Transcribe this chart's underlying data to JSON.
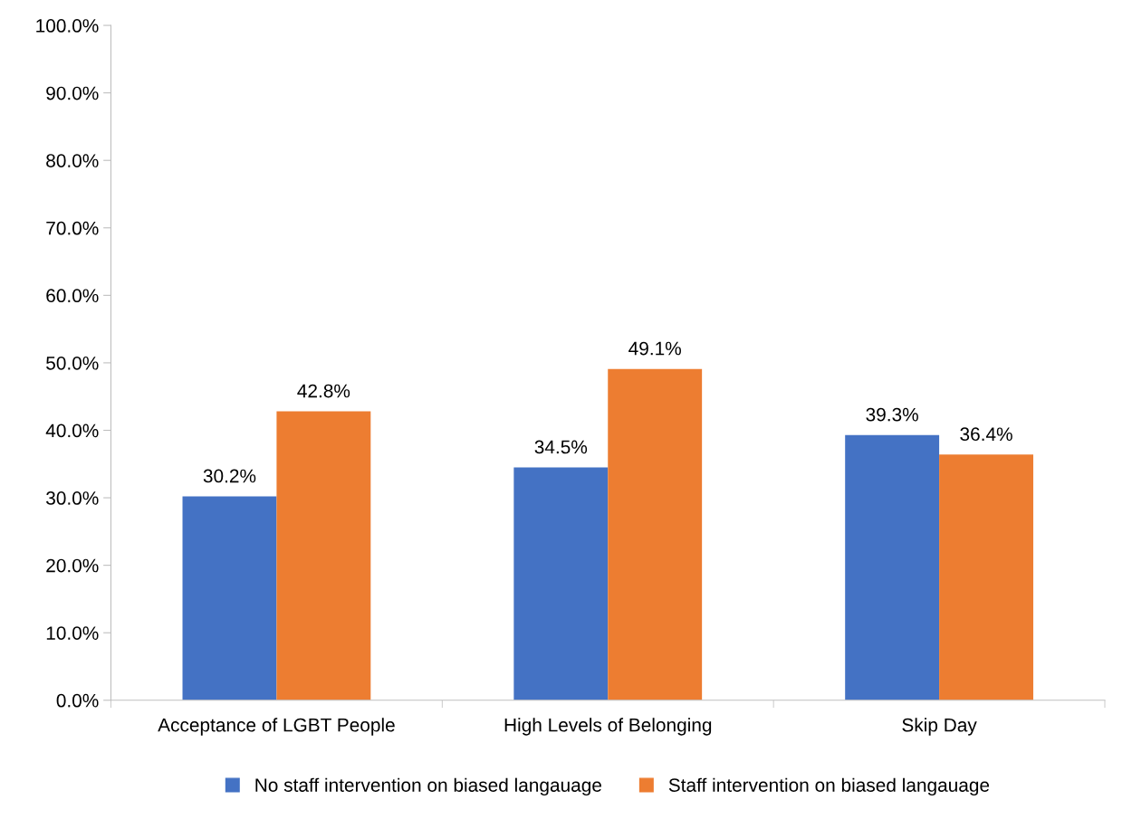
{
  "chart_data": {
    "type": "bar",
    "categories": [
      "Acceptance of LGBT People",
      "High Levels of Belonging",
      "Skip Day"
    ],
    "series": [
      {
        "name": "No staff intervention on biased langauage",
        "color": "#4472c4",
        "values": [
          30.2,
          34.5,
          39.3
        ],
        "value_labels": [
          "30.2%",
          "34.5%",
          "39.3%"
        ]
      },
      {
        "name": "Staff intervention on biased langauage",
        "color": "#ed7d31",
        "values": [
          42.8,
          49.1,
          36.4
        ],
        "value_labels": [
          "42.8%",
          "49.1%",
          "36.4%"
        ]
      }
    ],
    "ylim": [
      0,
      100
    ],
    "yticks": [
      {
        "value": 0,
        "label": "0.0%"
      },
      {
        "value": 10,
        "label": "10.0%"
      },
      {
        "value": 20,
        "label": "20.0%"
      },
      {
        "value": 30,
        "label": "30.0%"
      },
      {
        "value": 40,
        "label": "40.0%"
      },
      {
        "value": 50,
        "label": "50.0%"
      },
      {
        "value": 60,
        "label": "60.0%"
      },
      {
        "value": 70,
        "label": "70.0%"
      },
      {
        "value": 80,
        "label": "80.0%"
      },
      {
        "value": 90,
        "label": "90.0%"
      },
      {
        "value": 100,
        "label": "100.0%"
      }
    ],
    "grid": false,
    "legend": "bottom"
  }
}
